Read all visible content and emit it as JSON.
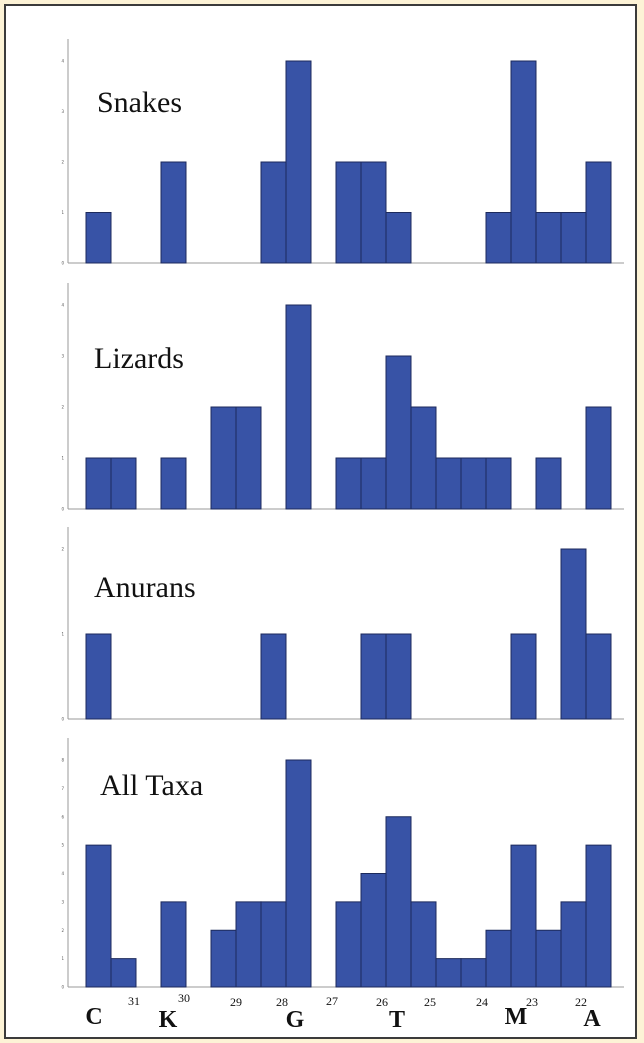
{
  "colors": {
    "bar_fill": "#3853a6",
    "bar_stroke": "#1c2a5c",
    "page_background": "#fdf3d6",
    "frame_border": "#3b3b3b"
  },
  "chart_data": [
    {
      "type": "bar",
      "title": "Snakes",
      "bin_positions": [
        "31.5",
        "31",
        "30.5",
        "30",
        "29.5",
        "29",
        "28.5",
        "28",
        "27.5",
        "27",
        "26.5",
        "26",
        "25.5",
        "25",
        "24.5",
        "24",
        "23.5",
        "23",
        "22.5",
        "22",
        "21.5",
        "21"
      ],
      "values": [
        1,
        0,
        0,
        2,
        0,
        0,
        0,
        2,
        4,
        0,
        2,
        2,
        1,
        0,
        0,
        0,
        1,
        4,
        1,
        1,
        2,
        0
      ],
      "ylim": [
        0,
        4
      ],
      "grid": false
    },
    {
      "type": "bar",
      "title": "Lizards",
      "bin_positions": [
        "31.5",
        "31",
        "30.5",
        "30",
        "29.5",
        "29",
        "28.5",
        "28",
        "27.5",
        "27",
        "26.5",
        "26",
        "25.5",
        "25",
        "24.5",
        "24",
        "23.5",
        "23",
        "22.5",
        "22",
        "21.5",
        "21"
      ],
      "values": [
        1,
        1,
        0,
        1,
        0,
        2,
        2,
        0,
        4,
        0,
        1,
        1,
        3,
        2,
        1,
        1,
        1,
        0,
        1,
        0,
        2,
        0
      ],
      "ylim": [
        0,
        4
      ],
      "grid": false
    },
    {
      "type": "bar",
      "title": "Anurans",
      "bin_positions": [
        "31.5",
        "31",
        "30.5",
        "30",
        "29.5",
        "29",
        "28.5",
        "28",
        "27.5",
        "27",
        "26.5",
        "26",
        "25.5",
        "25",
        "24.5",
        "24",
        "23.5",
        "23",
        "22.5",
        "22",
        "21.5",
        "21"
      ],
      "values": [
        1,
        0,
        0,
        0,
        0,
        0,
        0,
        1,
        0,
        0,
        0,
        1,
        1,
        0,
        0,
        0,
        0,
        1,
        0,
        2,
        1,
        0
      ],
      "ylim": [
        0,
        2
      ],
      "grid": false
    },
    {
      "type": "bar",
      "title": "All Taxa",
      "bin_positions": [
        "31.5",
        "31",
        "30.5",
        "30",
        "29.5",
        "29",
        "28.5",
        "28",
        "27.5",
        "27",
        "26.5",
        "26",
        "25.5",
        "25",
        "24.5",
        "24",
        "23.5",
        "23",
        "22.5",
        "22",
        "21.5",
        "21"
      ],
      "values": [
        5,
        1,
        0,
        3,
        0,
        2,
        3,
        3,
        8,
        0,
        3,
        4,
        6,
        3,
        1,
        1,
        2,
        5,
        2,
        3,
        5,
        0
      ],
      "ylim": [
        0,
        8
      ],
      "grid": false
    }
  ],
  "x_axis": {
    "numbers": [
      "31",
      "30",
      "29",
      "28",
      "27",
      "26",
      "25",
      "24",
      "23",
      "22"
    ],
    "letters": [
      "C",
      "K",
      "G",
      "T",
      "M",
      "A"
    ]
  }
}
